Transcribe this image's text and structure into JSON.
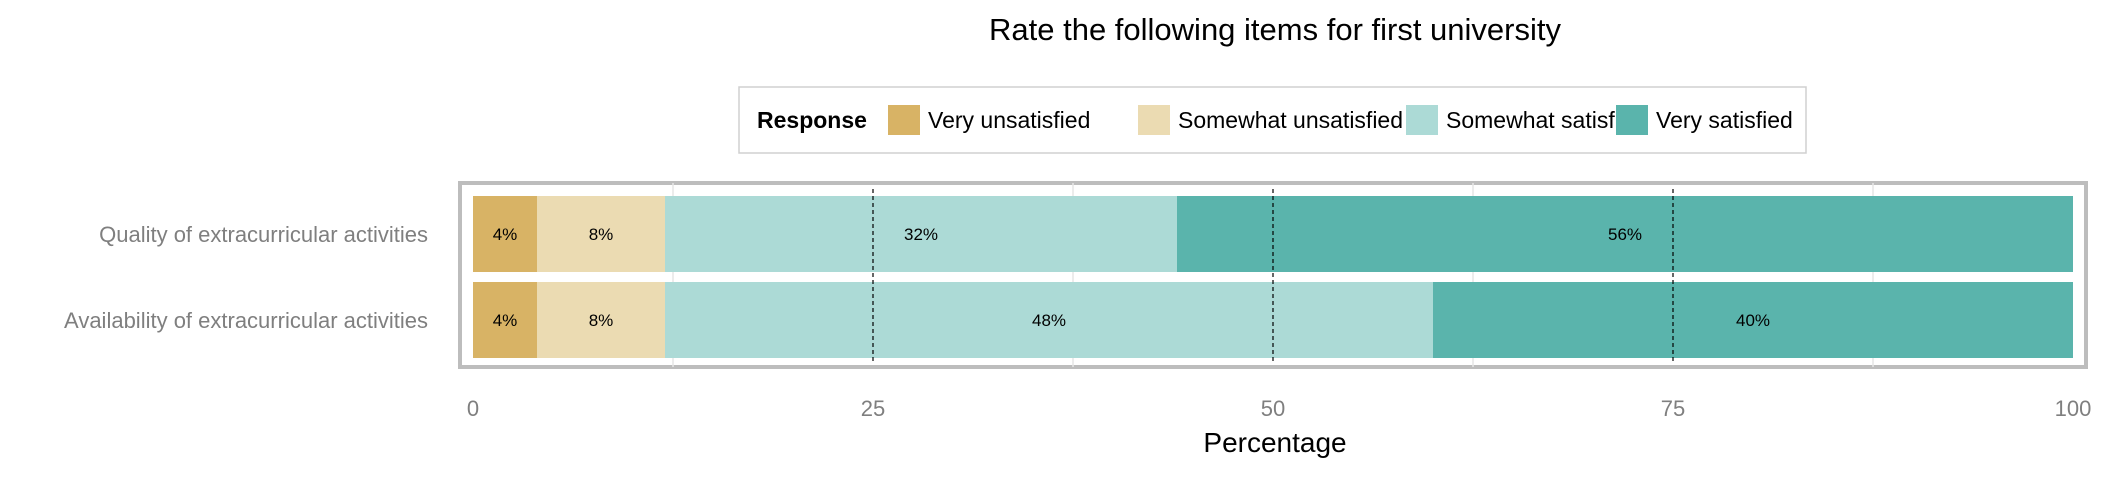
{
  "chart_data": {
    "type": "bar",
    "orientation": "horizontal",
    "stacked": true,
    "title": "Rate the following items for first university",
    "xlabel": "Percentage",
    "ylabel": "",
    "xlim": [
      0,
      100
    ],
    "xticks": [
      "0",
      "25",
      "50",
      "75",
      "100"
    ],
    "grid": true,
    "legend": {
      "title": "Response",
      "position": "top"
    },
    "categories": [
      "Quality of extracurricular activities",
      "Availability of extracurricular activities"
    ],
    "series": [
      {
        "name": "Very unsatisfied",
        "color": "#d8b365",
        "values": [
          4,
          4
        ],
        "labels": [
          "4%",
          "4%"
        ]
      },
      {
        "name": "Somewhat unsatisfied",
        "color": "#ebdbb2",
        "values": [
          8,
          8
        ],
        "labels": [
          "8%",
          "8%"
        ]
      },
      {
        "name": "Somewhat satisfied",
        "color": "#acdad6",
        "values": [
          32,
          48
        ],
        "labels": [
          "32%",
          "48%"
        ]
      },
      {
        "name": "Very satisfied",
        "color": "#5ab4ac",
        "values": [
          56,
          40
        ],
        "labels": [
          "56%",
          "40%"
        ]
      }
    ]
  }
}
